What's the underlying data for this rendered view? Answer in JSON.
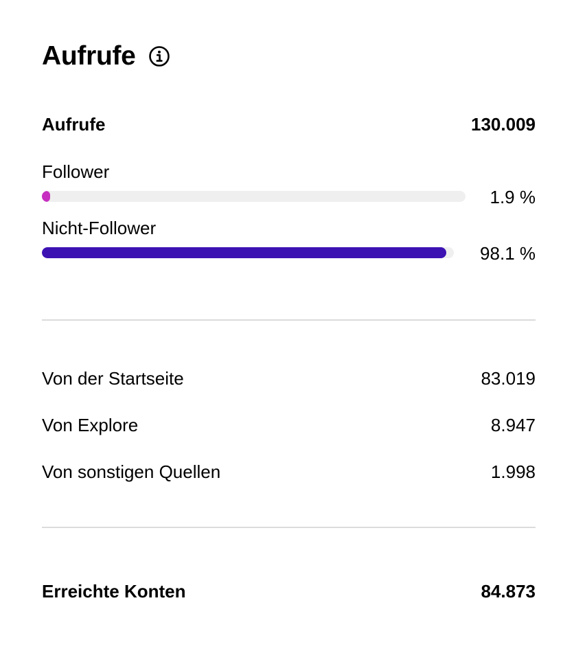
{
  "header": {
    "title": "Aufrufe",
    "info_icon": "info-circle-icon"
  },
  "summary": {
    "label": "Aufrufe",
    "value": "130.009"
  },
  "audience": {
    "items": [
      {
        "label": "Follower",
        "percent_text": "1.9 %",
        "percent": 1.9,
        "color": "#c62fbf"
      },
      {
        "label": "Nicht-Follower",
        "percent_text": "98.1 %",
        "percent": 98.1,
        "color": "#3d12b3"
      }
    ],
    "track_color": "#efefef"
  },
  "sources": [
    {
      "label": "Von der Startseite",
      "value": "83.019"
    },
    {
      "label": "Von Explore",
      "value": "8.947"
    },
    {
      "label": "Von sonstigen Quellen",
      "value": "1.998"
    }
  ],
  "reach": {
    "label": "Erreichte Konten",
    "value": "84.873"
  },
  "colors": {
    "divider": "#dbdbdb",
    "text": "#000000"
  }
}
